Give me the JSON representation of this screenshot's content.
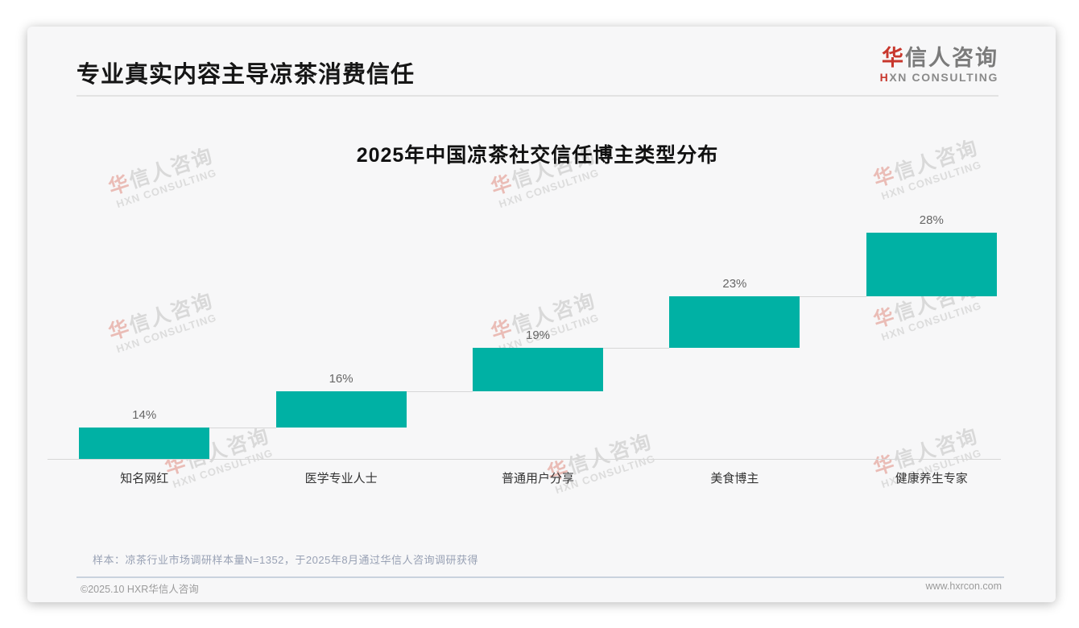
{
  "page": {
    "title": "专业真实内容主导凉茶消费信任",
    "sample_note": "样本：凉茶行业市场调研样本量N=1352，于2025年8月通过华信人咨询调研获得",
    "footer_left": "©2025.10 HXR华信人咨询",
    "footer_right": "www.hxrcon.com"
  },
  "logo": {
    "zh_first": "华",
    "zh_rest": "信人咨询",
    "en_first": "H",
    "en_rest": "XN CONSULTING"
  },
  "watermark": {
    "zh_first": "华",
    "zh_rest": "信人咨询",
    "en": "HXN CONSULTING"
  },
  "chart_data": {
    "type": "bar",
    "subtype": "waterfall-cumulative",
    "title": "2025年中国凉茶社交信任博主类型分布",
    "categories": [
      "知名网红",
      "医学专业人士",
      "普通用户分享",
      "美食博主",
      "健康养生专家"
    ],
    "values": [
      14,
      16,
      19,
      23,
      28
    ],
    "labels": [
      "14%",
      "16%",
      "19%",
      "23%",
      "28%"
    ],
    "cumulative": [
      14,
      30,
      49,
      72,
      100
    ],
    "unit": "%",
    "ylim": [
      0,
      100
    ],
    "grid": false,
    "legend": "none",
    "bar_color": "#00b1a4",
    "connector_color": "#d7d7d7",
    "axis_color": "#d7d7d7",
    "value_label_color": "#666666",
    "category_label_color": "#333333"
  }
}
